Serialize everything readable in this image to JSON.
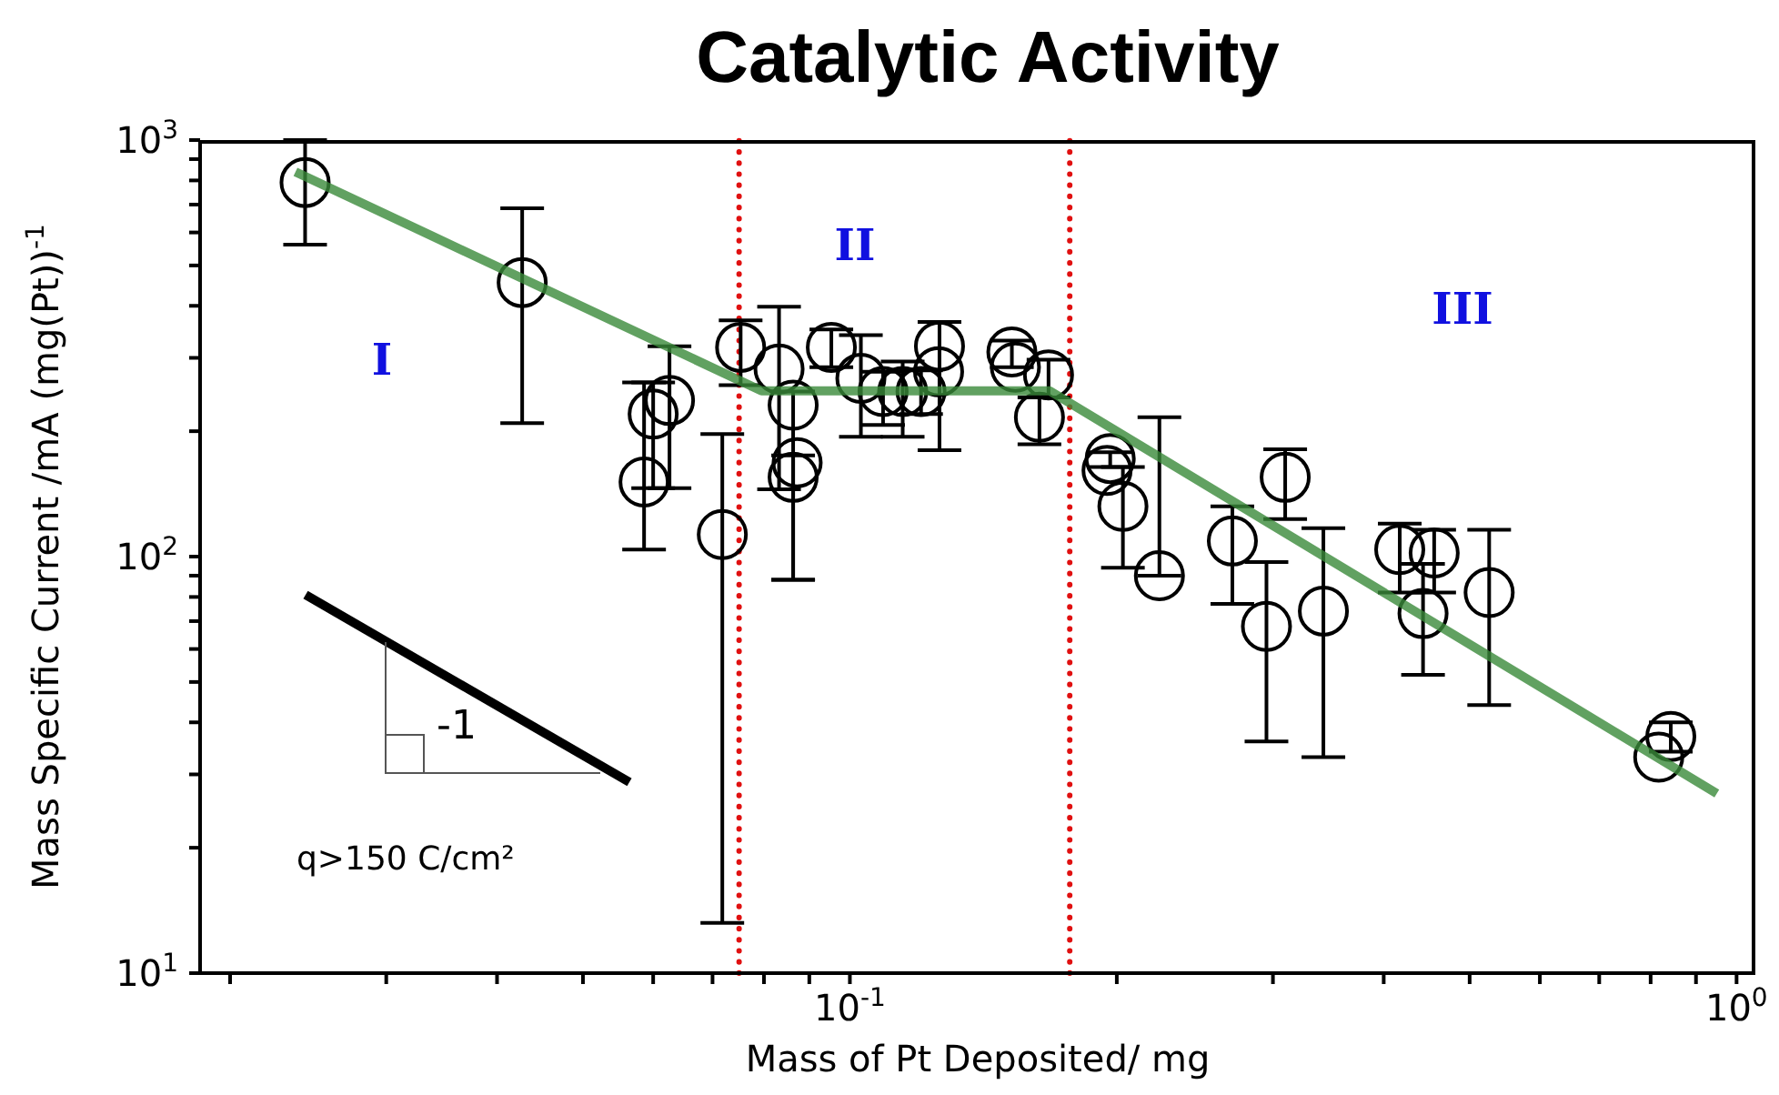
{
  "chart_data": {
    "type": "scatter",
    "title": "Catalytic Activity",
    "xlabel": "Mass of Pt Deposited/ mg",
    "ylabel": "Mass Specific Current /mA (mg(Pt))$^{-1}$",
    "log": "xy",
    "xlim": [
      0.0185,
      1.05
    ],
    "ylim": [
      10,
      1000
    ],
    "xticks": [
      {
        "value": 0.02,
        "label": null
      },
      {
        "value": 0.03,
        "label": null
      },
      {
        "value": 0.04,
        "label": null
      },
      {
        "value": 0.05,
        "label": null
      },
      {
        "value": 0.06,
        "label": null
      },
      {
        "value": 0.07,
        "label": null
      },
      {
        "value": 0.08,
        "label": null
      },
      {
        "value": 0.09,
        "label": null
      },
      {
        "value": 0.1,
        "label": "10$^{-1}$"
      },
      {
        "value": 0.2,
        "label": null
      },
      {
        "value": 0.3,
        "label": null
      },
      {
        "value": 0.4,
        "label": null
      },
      {
        "value": 0.5,
        "label": null
      },
      {
        "value": 0.6,
        "label": null
      },
      {
        "value": 0.7,
        "label": null
      },
      {
        "value": 0.8,
        "label": null
      },
      {
        "value": 0.9,
        "label": null
      },
      {
        "value": 1,
        "label": "10$^{0}$"
      }
    ],
    "yticks": [
      {
        "value": 10,
        "label": "10$^{1}$"
      },
      {
        "value": 20,
        "label": null
      },
      {
        "value": 30,
        "label": null
      },
      {
        "value": 40,
        "label": null
      },
      {
        "value": 50,
        "label": null
      },
      {
        "value": 60,
        "label": null
      },
      {
        "value": 70,
        "label": null
      },
      {
        "value": 80,
        "label": null
      },
      {
        "value": 90,
        "label": null
      },
      {
        "value": 100,
        "label": "10$^{2}$"
      },
      {
        "value": 200,
        "label": null
      },
      {
        "value": 300,
        "label": null
      },
      {
        "value": 400,
        "label": null
      },
      {
        "value": 500,
        "label": null
      },
      {
        "value": 600,
        "label": null
      },
      {
        "value": 700,
        "label": null
      },
      {
        "value": 800,
        "label": null
      },
      {
        "value": 900,
        "label": null
      },
      {
        "value": 1000,
        "label": "10$^{3}$"
      }
    ],
    "series": [
      {
        "color": "#000000",
        "marker": "circle",
        "x": [
          0.0243,
          0.0427,
          0.0586,
          0.06,
          0.0626,
          0.0718,
          0.0753,
          0.0832,
          0.0863,
          0.0872,
          0.0863,
          0.0953,
          0.1029,
          0.109,
          0.1147,
          0.1203,
          0.1262,
          0.1259,
          0.1523,
          0.1537,
          0.1675,
          0.1636,
          0.1966,
          0.195,
          0.2032,
          0.2234,
          0.27,
          0.295,
          0.3097,
          0.342,
          0.417,
          0.456,
          0.443,
          0.526,
          0.843,
          0.817
        ],
        "values": [
          791,
          455,
          151,
          220,
          237,
          113,
          318,
          282,
          231,
          168,
          155,
          318,
          268,
          249,
          249,
          249,
          320,
          278,
          310,
          285,
          273,
          216,
          172,
          161,
          132,
          90,
          109,
          68,
          155,
          74,
          104,
          102,
          73,
          82,
          37,
          33
        ],
        "errors": [
          [
            561,
            1000
          ],
          [
            209,
            686
          ],
          [
            104,
            262
          ],
          [
            146,
            262
          ],
          [
            146,
            320
          ],
          [
            13.2,
            197
          ],
          [
            258,
            369
          ],
          [
            145,
            398
          ],
          [
            88,
            249
          ],
          null,
          [
            88,
            175
          ],
          [
            285,
            351
          ],
          [
            194,
            340
          ],
          [
            207,
            278
          ],
          [
            194,
            294
          ],
          [
            220,
            280
          ],
          [
            180,
            366
          ],
          null,
          [
            285,
            330
          ],
          null,
          [
            241,
            297
          ],
          [
            186,
            241
          ],
          [
            164,
            178
          ],
          null,
          [
            94,
            164
          ],
          [
            90,
            216
          ],
          [
            77,
            132
          ],
          [
            36,
            97
          ],
          [
            123,
            181
          ],
          [
            33,
            117
          ],
          [
            82,
            120
          ],
          [
            82,
            116
          ],
          [
            52,
            96
          ],
          [
            44,
            116
          ],
          [
            34,
            40
          ],
          null
        ]
      },
      {
        "type": "line",
        "color": "#3a8a3a",
        "x": [
          0.0237,
          0.0795,
          0.168,
          0.95
        ],
        "values": [
          839,
          250,
          250,
          27
        ]
      }
    ],
    "ref_lines": [
      {
        "axis": "x",
        "value": 0.075,
        "color": "#e01010",
        "line_style": "dotted"
      },
      {
        "axis": "x",
        "value": 0.177,
        "color": "#e01010",
        "line_style": "dotted"
      }
    ],
    "annotations": [
      "I",
      "II",
      "III",
      "-1",
      "q>150 C/cm²"
    ]
  }
}
